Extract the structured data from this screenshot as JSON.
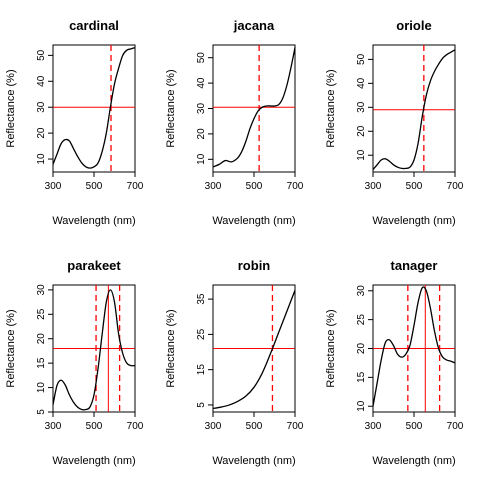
{
  "chart_data": [
    {
      "type": "line",
      "title": "cardinal",
      "xlabel": "Wavelength (nm)",
      "ylabel": "Reflectance (%)",
      "xlim": [
        300,
        700
      ],
      "ylim": [
        5,
        54
      ],
      "xticks": [
        300,
        500,
        700
      ],
      "yticks": [
        10,
        20,
        30,
        40,
        50
      ],
      "x": [
        300,
        320,
        340,
        360,
        380,
        400,
        420,
        440,
        460,
        480,
        500,
        520,
        540,
        560,
        580,
        600,
        620,
        640,
        660,
        680,
        700
      ],
      "y": [
        8,
        12,
        16,
        17.5,
        17,
        14,
        11,
        8.5,
        7,
        6.5,
        7,
        8.5,
        13,
        20,
        30,
        39,
        45,
        50,
        52,
        52.5,
        53
      ],
      "hlines": [
        30
      ],
      "vlines_dashed": [
        583
      ],
      "vlines_solid": []
    },
    {
      "type": "line",
      "title": "jacana",
      "xlabel": "Wavelength (nm)",
      "ylabel": "Reflectance (%)",
      "xlim": [
        300,
        700
      ],
      "ylim": [
        5,
        55
      ],
      "xticks": [
        300,
        500,
        700
      ],
      "yticks": [
        10,
        20,
        30,
        40,
        50
      ],
      "x": [
        300,
        330,
        360,
        390,
        420,
        440,
        460,
        480,
        500,
        520,
        540,
        560,
        580,
        600,
        620,
        640,
        660,
        680,
        700
      ],
      "y": [
        7,
        8,
        9.5,
        9,
        10.5,
        13,
        17,
        22,
        26,
        29,
        30.5,
        31,
        31,
        31,
        31.5,
        34,
        39,
        46,
        54
      ],
      "hlines": [
        30.5
      ],
      "vlines_dashed": [
        525
      ],
      "vlines_solid": []
    },
    {
      "type": "line",
      "title": "oriole",
      "xlabel": "Wavelength (nm)",
      "ylabel": "Reflectance (%)",
      "xlim": [
        300,
        700
      ],
      "ylim": [
        3,
        56
      ],
      "xticks": [
        300,
        500,
        700
      ],
      "yticks": [
        10,
        20,
        30,
        40,
        50
      ],
      "x": [
        300,
        320,
        340,
        360,
        380,
        400,
        420,
        440,
        460,
        480,
        500,
        520,
        540,
        560,
        580,
        600,
        620,
        640,
        660,
        680,
        700
      ],
      "y": [
        4,
        6,
        8,
        8.5,
        7.5,
        6,
        5,
        4.5,
        4.5,
        5,
        8,
        15,
        26,
        35,
        41,
        45,
        48,
        50.5,
        52,
        53,
        54
      ],
      "hlines": [
        29
      ],
      "vlines_dashed": [
        548
      ],
      "vlines_solid": []
    },
    {
      "type": "line",
      "title": "parakeet",
      "xlabel": "Wavelength (nm)",
      "ylabel": "Reflectance (%)",
      "xlim": [
        300,
        700
      ],
      "ylim": [
        5,
        31
      ],
      "xticks": [
        300,
        500,
        700
      ],
      "yticks": [
        5,
        10,
        15,
        20,
        25,
        30
      ],
      "x": [
        300,
        320,
        340,
        360,
        380,
        400,
        420,
        440,
        460,
        480,
        500,
        520,
        540,
        560,
        580,
        600,
        620,
        640,
        660,
        680,
        700
      ],
      "y": [
        6.5,
        10.5,
        11.5,
        10.5,
        8.5,
        7,
        6,
        5.5,
        5.5,
        6,
        8.5,
        14,
        21,
        27.5,
        30,
        27.5,
        21,
        17,
        15,
        14.5,
        14.5
      ],
      "hlines": [
        18
      ],
      "vlines_dashed": [
        510,
        625
      ],
      "vlines_solid": [
        570
      ]
    },
    {
      "type": "line",
      "title": "robin",
      "xlabel": "Wavelength (nm)",
      "ylabel": "Reflectance (%)",
      "xlim": [
        300,
        700
      ],
      "ylim": [
        3,
        39
      ],
      "xticks": [
        300,
        500,
        700
      ],
      "yticks": [
        5,
        15,
        25,
        35
      ],
      "x": [
        300,
        340,
        380,
        420,
        460,
        500,
        540,
        580,
        620,
        660,
        700
      ],
      "y": [
        4,
        4.4,
        5,
        6,
        7.5,
        10,
        14,
        19.5,
        25.5,
        31.5,
        37.5
      ],
      "hlines": [
        21
      ],
      "vlines_dashed": [
        590
      ],
      "vlines_solid": []
    },
    {
      "type": "line",
      "title": "tanager",
      "xlabel": "Wavelength (nm)",
      "ylabel": "Reflectance (%)",
      "xlim": [
        300,
        700
      ],
      "ylim": [
        9,
        31
      ],
      "xticks": [
        300,
        500,
        700
      ],
      "yticks": [
        10,
        15,
        20,
        25,
        30
      ],
      "x": [
        300,
        320,
        340,
        360,
        380,
        400,
        420,
        440,
        460,
        480,
        500,
        520,
        540,
        560,
        580,
        600,
        620,
        640,
        660,
        680,
        700
      ],
      "y": [
        10,
        14,
        18,
        21,
        21.5,
        20.5,
        19,
        18.5,
        19,
        20.5,
        24,
        28,
        30.5,
        30,
        27,
        23,
        20,
        18.5,
        18,
        17.8,
        17.5
      ],
      "hlines": [
        20
      ],
      "vlines_dashed": [
        470,
        625
      ],
      "vlines_solid": [
        555
      ]
    }
  ],
  "colors": {
    "curve": "#000000",
    "reference_line": "#ff0000",
    "axis": "#000000"
  }
}
